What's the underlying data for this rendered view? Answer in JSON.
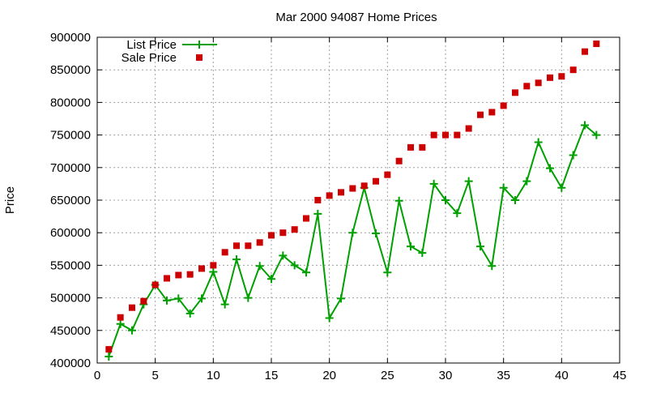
{
  "chart_data": {
    "type": "line",
    "title": "Mar 2000 94087 Home Prices",
    "xlabel": "",
    "ylabel": "Price",
    "xlim": [
      0,
      45
    ],
    "ylim": [
      400000,
      900000
    ],
    "xticks": [
      0,
      5,
      10,
      15,
      20,
      25,
      30,
      35,
      40,
      45
    ],
    "yticks": [
      400000,
      450000,
      500000,
      550000,
      600000,
      650000,
      700000,
      750000,
      800000,
      850000,
      900000
    ],
    "grid": true,
    "legend_position": "top-left",
    "x": [
      1,
      2,
      3,
      4,
      5,
      6,
      7,
      8,
      9,
      10,
      11,
      12,
      13,
      14,
      15,
      16,
      17,
      18,
      19,
      20,
      21,
      22,
      23,
      24,
      25,
      26,
      27,
      28,
      29,
      30,
      31,
      32,
      33,
      34,
      35,
      36,
      37,
      38,
      39,
      40,
      41,
      42,
      43
    ],
    "series": [
      {
        "name": "List Price",
        "style": "linespoints",
        "marker": "plus",
        "color": "#00a000",
        "values": [
          410000,
          460000,
          450000,
          490000,
          520000,
          496000,
          499000,
          476000,
          499000,
          540000,
          490000,
          559000,
          500000,
          549000,
          529000,
          565000,
          550000,
          539000,
          629000,
          469000,
          499000,
          600000,
          669000,
          599000,
          539000,
          649000,
          579000,
          569000,
          675000,
          650000,
          630000,
          679000,
          579000,
          549000,
          669000,
          650000,
          679000,
          739000,
          699000,
          669000,
          719000,
          765000,
          750000
        ]
      },
      {
        "name": "Sale Price",
        "style": "points",
        "marker": "square",
        "color": "#cc0000",
        "values": [
          421000,
          470000,
          485000,
          495000,
          520000,
          530000,
          535000,
          536000,
          545000,
          550000,
          570000,
          580000,
          580000,
          585000,
          596000,
          600000,
          605000,
          622000,
          650000,
          657000,
          662000,
          668000,
          672000,
          679000,
          689000,
          710000,
          731000,
          731000,
          750000,
          750000,
          750000,
          760000,
          781000,
          785000,
          795000,
          815000,
          825000,
          830000,
          838000,
          840000,
          850000,
          878000,
          890000
        ]
      }
    ]
  }
}
